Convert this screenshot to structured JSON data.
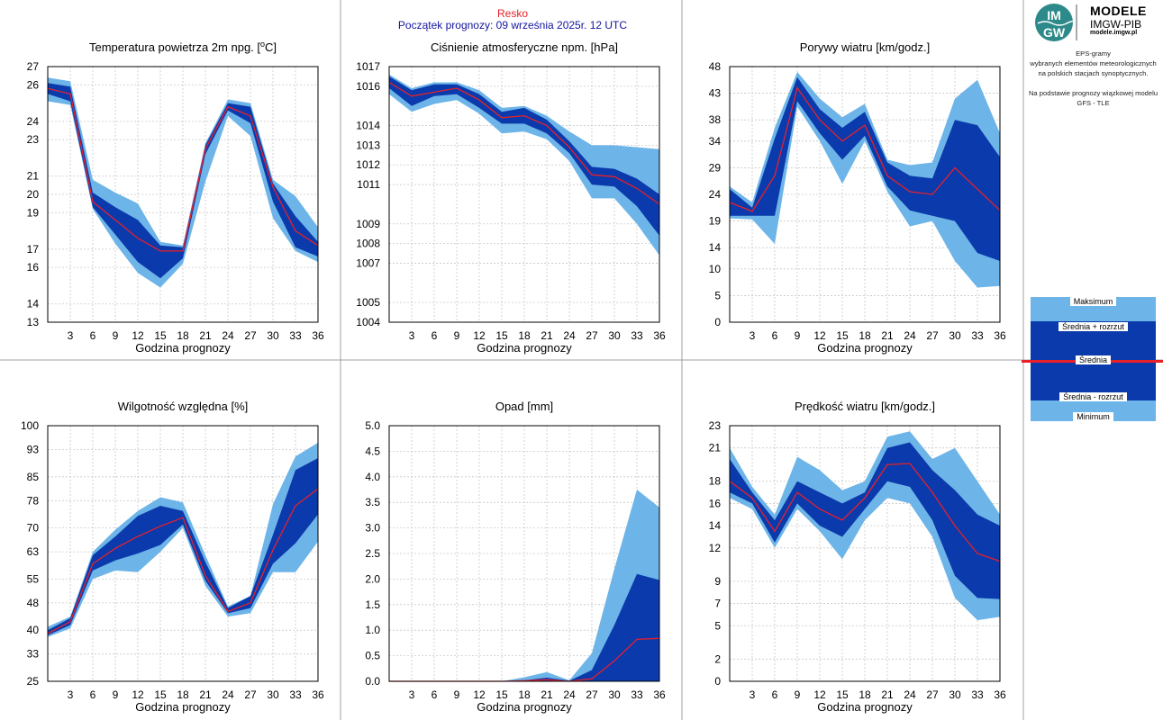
{
  "header": {
    "station": "Resko",
    "forecast_start": "Początek prognozy: 09 września 2025r. 12 UTC"
  },
  "logo": {
    "mark_text_top": "IM",
    "mark_text_bottom": "GW",
    "title": "MODELE",
    "subtitle": "IMGW-PIB",
    "url": "modele.imgw.pl"
  },
  "description": {
    "lines": [
      "EPS-gramy",
      "wybranych elementów meteorologicznych",
      "na polskich stacjach  synoptycznych.",
      "",
      "Na podstawie prognozy wiązkowej modelu",
      "GFS - TLE"
    ]
  },
  "legend": {
    "max": "Maksimum",
    "mean_plus": "Średnia + rozrzut",
    "mean": "Średnia",
    "mean_minus": "Średnia - rozrzut",
    "min": "Minimum"
  },
  "colors": {
    "range": "#6db4e8",
    "spread": "#0a3aab",
    "mean": "#e8202a",
    "grid": "#c8c8c8",
    "separator": "#a0a0a0"
  },
  "chart_data": [
    {
      "type": "area",
      "title": "Temperatura powietrza 2m npg. [°C]",
      "title_main": "Temperatura powietrza 2m npg. [",
      "title_sup": "o",
      "title_end": "C]",
      "xlabel": "Godzina prognozy",
      "x": [
        0,
        3,
        6,
        9,
        12,
        15,
        18,
        21,
        24,
        27,
        30,
        33,
        36
      ],
      "xlim": [
        0,
        36
      ],
      "ylim": [
        13,
        27
      ],
      "yticks": [
        13,
        14,
        16,
        17,
        19,
        20,
        21,
        23,
        24,
        26,
        27
      ],
      "series": [
        {
          "name": "Maksimum",
          "values": [
            26.4,
            26.2,
            20.8,
            20.1,
            19.5,
            17.4,
            17.2,
            22.8,
            25.2,
            25.0,
            20.8,
            19.9,
            18.2
          ]
        },
        {
          "name": "Średnia + rozrzut",
          "values": [
            26.1,
            25.9,
            20.1,
            19.3,
            18.6,
            17.2,
            17.1,
            22.7,
            25.0,
            24.8,
            20.6,
            18.8,
            17.4
          ]
        },
        {
          "name": "Średnia",
          "values": [
            25.8,
            25.5,
            19.6,
            18.6,
            17.6,
            16.9,
            16.9,
            22.5,
            24.8,
            24.3,
            20.4,
            18.0,
            17.2
          ]
        },
        {
          "name": "Średnia - rozrzut",
          "values": [
            25.5,
            25.1,
            19.3,
            17.8,
            16.3,
            15.4,
            16.5,
            22.2,
            24.6,
            23.9,
            19.6,
            17.1,
            16.6
          ]
        },
        {
          "name": "Minimum",
          "values": [
            25.1,
            24.9,
            19.2,
            17.3,
            15.7,
            14.9,
            16.2,
            20.7,
            24.3,
            23.2,
            18.7,
            16.9,
            16.3
          ]
        }
      ]
    },
    {
      "type": "area",
      "title": "Ciśnienie atmosferyczne npm. [hPa]",
      "xlabel": "Godzina prognozy",
      "x": [
        0,
        3,
        6,
        9,
        12,
        15,
        18,
        21,
        24,
        27,
        30,
        33,
        36
      ],
      "xlim": [
        0,
        36
      ],
      "ylim": [
        1004,
        1017
      ],
      "yticks": [
        1004,
        1005,
        1007,
        1008,
        1009,
        1011,
        1012,
        1013,
        1014,
        1016,
        1017
      ],
      "series": [
        {
          "name": "Maksimum",
          "values": [
            1016.6,
            1015.9,
            1016.2,
            1016.2,
            1015.8,
            1014.9,
            1015.0,
            1014.5,
            1013.7,
            1013.0,
            1013.0,
            1012.9,
            1012.8
          ]
        },
        {
          "name": "Średnia + rozrzut",
          "values": [
            1016.5,
            1015.8,
            1016.1,
            1016.1,
            1015.6,
            1014.7,
            1014.9,
            1014.3,
            1013.2,
            1011.9,
            1011.8,
            1011.3,
            1010.5
          ]
        },
        {
          "name": "Średnia",
          "values": [
            1016.2,
            1015.5,
            1015.7,
            1015.9,
            1015.3,
            1014.4,
            1014.5,
            1014.0,
            1012.9,
            1011.5,
            1011.4,
            1010.8,
            1010.0
          ]
        },
        {
          "name": "Średnia - rozrzut",
          "values": [
            1015.9,
            1015.0,
            1015.5,
            1015.6,
            1014.9,
            1014.1,
            1014.1,
            1013.6,
            1012.6,
            1011.0,
            1010.9,
            1009.9,
            1008.4
          ]
        },
        {
          "name": "Minimum",
          "values": [
            1015.6,
            1014.7,
            1015.1,
            1015.3,
            1014.6,
            1013.6,
            1013.7,
            1013.3,
            1012.2,
            1010.3,
            1010.3,
            1009.0,
            1007.4
          ]
        }
      ]
    },
    {
      "type": "area",
      "title": "Porywy wiatru [km/godz.]",
      "xlabel": "Godzina prognozy",
      "x": [
        0,
        3,
        6,
        9,
        12,
        15,
        18,
        21,
        24,
        27,
        30,
        33,
        36
      ],
      "xlim": [
        0,
        36
      ],
      "ylim": [
        0,
        48
      ],
      "yticks": [
        0,
        5,
        10,
        14,
        19,
        24,
        29,
        34,
        38,
        43,
        48
      ],
      "series": [
        {
          "name": "Maksimum",
          "values": [
            25.5,
            22.5,
            36.5,
            47.0,
            42.0,
            38.5,
            41.0,
            30.5,
            29.5,
            30.0,
            42.0,
            45.5,
            35.5
          ]
        },
        {
          "name": "Średnia + rozrzut",
          "values": [
            25.0,
            21.5,
            34.5,
            46.0,
            40.0,
            36.5,
            39.5,
            30.0,
            27.5,
            27.0,
            38.0,
            37.0,
            31.0
          ]
        },
        {
          "name": "Średnia",
          "values": [
            22.5,
            20.8,
            27.5,
            44.0,
            38.0,
            34.0,
            37.0,
            27.5,
            24.5,
            24.0,
            29.0,
            25.0,
            21.0
          ]
        },
        {
          "name": "Średnia - rozrzut",
          "values": [
            20.0,
            20.0,
            20.0,
            41.5,
            35.5,
            30.5,
            35.0,
            25.5,
            21.0,
            20.0,
            19.0,
            13.0,
            11.5
          ]
        },
        {
          "name": "Minimum",
          "values": [
            19.5,
            19.3,
            14.7,
            40.5,
            34.0,
            26.0,
            34.0,
            24.5,
            18.0,
            19.0,
            11.5,
            6.5,
            6.8
          ]
        }
      ]
    },
    {
      "type": "area",
      "title": "Wilgotność względna [%]",
      "xlabel": "Godzina prognozy",
      "x": [
        0,
        3,
        6,
        9,
        12,
        15,
        18,
        21,
        24,
        27,
        30,
        33,
        36
      ],
      "xlim": [
        0,
        36
      ],
      "ylim": [
        25,
        100
      ],
      "yticks": [
        25,
        33,
        40,
        48,
        55,
        63,
        70,
        78,
        85,
        93,
        100
      ],
      "series": [
        {
          "name": "Maksimum",
          "values": [
            41.0,
            44.0,
            63.0,
            69.5,
            75.0,
            79.0,
            77.5,
            62.0,
            47.0,
            50.0,
            77.0,
            91.0,
            95.0
          ]
        },
        {
          "name": "Średnia + rozrzut",
          "values": [
            40.0,
            43.5,
            62.0,
            67.5,
            73.5,
            76.5,
            75.0,
            60.0,
            46.5,
            50.0,
            68.0,
            87.0,
            90.5
          ]
        },
        {
          "name": "Średnia",
          "values": [
            39.0,
            42.5,
            59.5,
            64.0,
            67.5,
            70.5,
            73.0,
            56.0,
            45.5,
            48.0,
            63.5,
            76.5,
            81.5
          ]
        },
        {
          "name": "Średnia - rozrzut",
          "values": [
            38.5,
            41.5,
            57.5,
            60.5,
            62.5,
            65.0,
            71.0,
            54.5,
            45.0,
            46.5,
            59.5,
            65.5,
            74.0
          ]
        },
        {
          "name": "Minimum",
          "values": [
            38.0,
            40.5,
            55.0,
            57.5,
            57.0,
            63.0,
            70.0,
            53.0,
            44.0,
            45.0,
            57.0,
            57.0,
            66.0
          ]
        }
      ]
    },
    {
      "type": "area",
      "title": "Opad [mm]",
      "xlabel": "Godzina prognozy",
      "x": [
        0,
        3,
        6,
        9,
        12,
        15,
        18,
        21,
        24,
        27,
        30,
        33,
        36
      ],
      "xlim": [
        0,
        36
      ],
      "ylim": [
        0,
        5
      ],
      "yticks": [
        "0.0",
        "0.5",
        "1.0",
        "1.5",
        "2.0",
        "2.5",
        "3.0",
        "3.5",
        "4.0",
        "4.5",
        "5.0"
      ],
      "series": [
        {
          "name": "Maksimum",
          "values": [
            0,
            0,
            0,
            0,
            0,
            0,
            0.08,
            0.18,
            0.02,
            0.55,
            2.2,
            3.75,
            3.4
          ]
        },
        {
          "name": "Średnia + rozrzut",
          "values": [
            0,
            0,
            0,
            0,
            0,
            0,
            0.02,
            0.07,
            0.01,
            0.22,
            1.1,
            2.1,
            1.98
          ]
        },
        {
          "name": "Średnia",
          "values": [
            0,
            0,
            0,
            0,
            0,
            0,
            0.01,
            0.03,
            0.0,
            0.05,
            0.4,
            0.82,
            0.84
          ]
        },
        {
          "name": "Średnia - rozrzut",
          "values": [
            0,
            0,
            0,
            0,
            0,
            0,
            0,
            0,
            0,
            0,
            0,
            0,
            0
          ]
        },
        {
          "name": "Minimum",
          "values": [
            0,
            0,
            0,
            0,
            0,
            0,
            0,
            0,
            0,
            0,
            0,
            0,
            0
          ]
        }
      ]
    },
    {
      "type": "area",
      "title": "Prędkość wiatru [km/godz.]",
      "xlabel": "Godzina prognozy",
      "x": [
        0,
        3,
        6,
        9,
        12,
        15,
        18,
        21,
        24,
        27,
        30,
        33,
        36
      ],
      "xlim": [
        0,
        36
      ],
      "ylim": [
        0,
        23
      ],
      "yticks": [
        0,
        2,
        5,
        7,
        9,
        12,
        14,
        16,
        18,
        21,
        23
      ],
      "series": [
        {
          "name": "Maksimum",
          "values": [
            21.0,
            17.5,
            15.0,
            20.2,
            19.0,
            17.2,
            18.0,
            22.0,
            22.5,
            20.0,
            21.0,
            18.0,
            15.0
          ]
        },
        {
          "name": "Średnia + rozrzut",
          "values": [
            20.0,
            17.0,
            14.5,
            18.0,
            17.0,
            16.0,
            17.0,
            21.0,
            21.5,
            19.0,
            17.2,
            15.0,
            14.0
          ]
        },
        {
          "name": "Średnia",
          "values": [
            18.0,
            16.5,
            13.5,
            17.0,
            15.5,
            14.5,
            16.5,
            19.5,
            19.6,
            17.0,
            14.0,
            11.5,
            10.8
          ]
        },
        {
          "name": "Średnia - rozrzut",
          "values": [
            17.0,
            16.0,
            12.5,
            16.0,
            14.0,
            13.0,
            15.5,
            18.0,
            17.5,
            14.5,
            9.5,
            7.5,
            7.4
          ]
        },
        {
          "name": "Minimum",
          "values": [
            16.5,
            15.5,
            12.0,
            15.5,
            13.5,
            11.0,
            14.5,
            16.5,
            16.0,
            13.0,
            7.5,
            5.5,
            5.8
          ]
        }
      ]
    }
  ]
}
